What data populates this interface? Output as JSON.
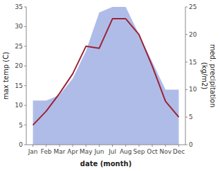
{
  "chart_data": {
    "type": "line",
    "categories": [
      "Jan",
      "Feb",
      "Mar",
      "Apr",
      "May",
      "Jun",
      "Jul",
      "Aug",
      "Sep",
      "Oct",
      "Nov",
      "Dec"
    ],
    "xlabel": "date (month)",
    "ylabel": "max temp (C)",
    "y2label": "med. precipitation\n(kg/m2)",
    "ylim": [
      0,
      35
    ],
    "yticks": [
      0,
      5,
      10,
      15,
      20,
      25,
      30,
      35
    ],
    "y2lim": [
      0,
      25
    ],
    "y2ticks": [
      0,
      5,
      10,
      15,
      20,
      25
    ],
    "grid": false,
    "series": [
      {
        "type": "area",
        "axis": "y2",
        "color": "#b0bce8",
        "values": [
          8,
          8,
          9,
          12,
          17,
          24,
          25,
          25,
          20,
          15,
          10,
          10
        ]
      },
      {
        "type": "line",
        "color": "#9b2335",
        "values": [
          5,
          8.5,
          13,
          18,
          25,
          24.5,
          32,
          32,
          28,
          20,
          11,
          7
        ]
      }
    ]
  }
}
